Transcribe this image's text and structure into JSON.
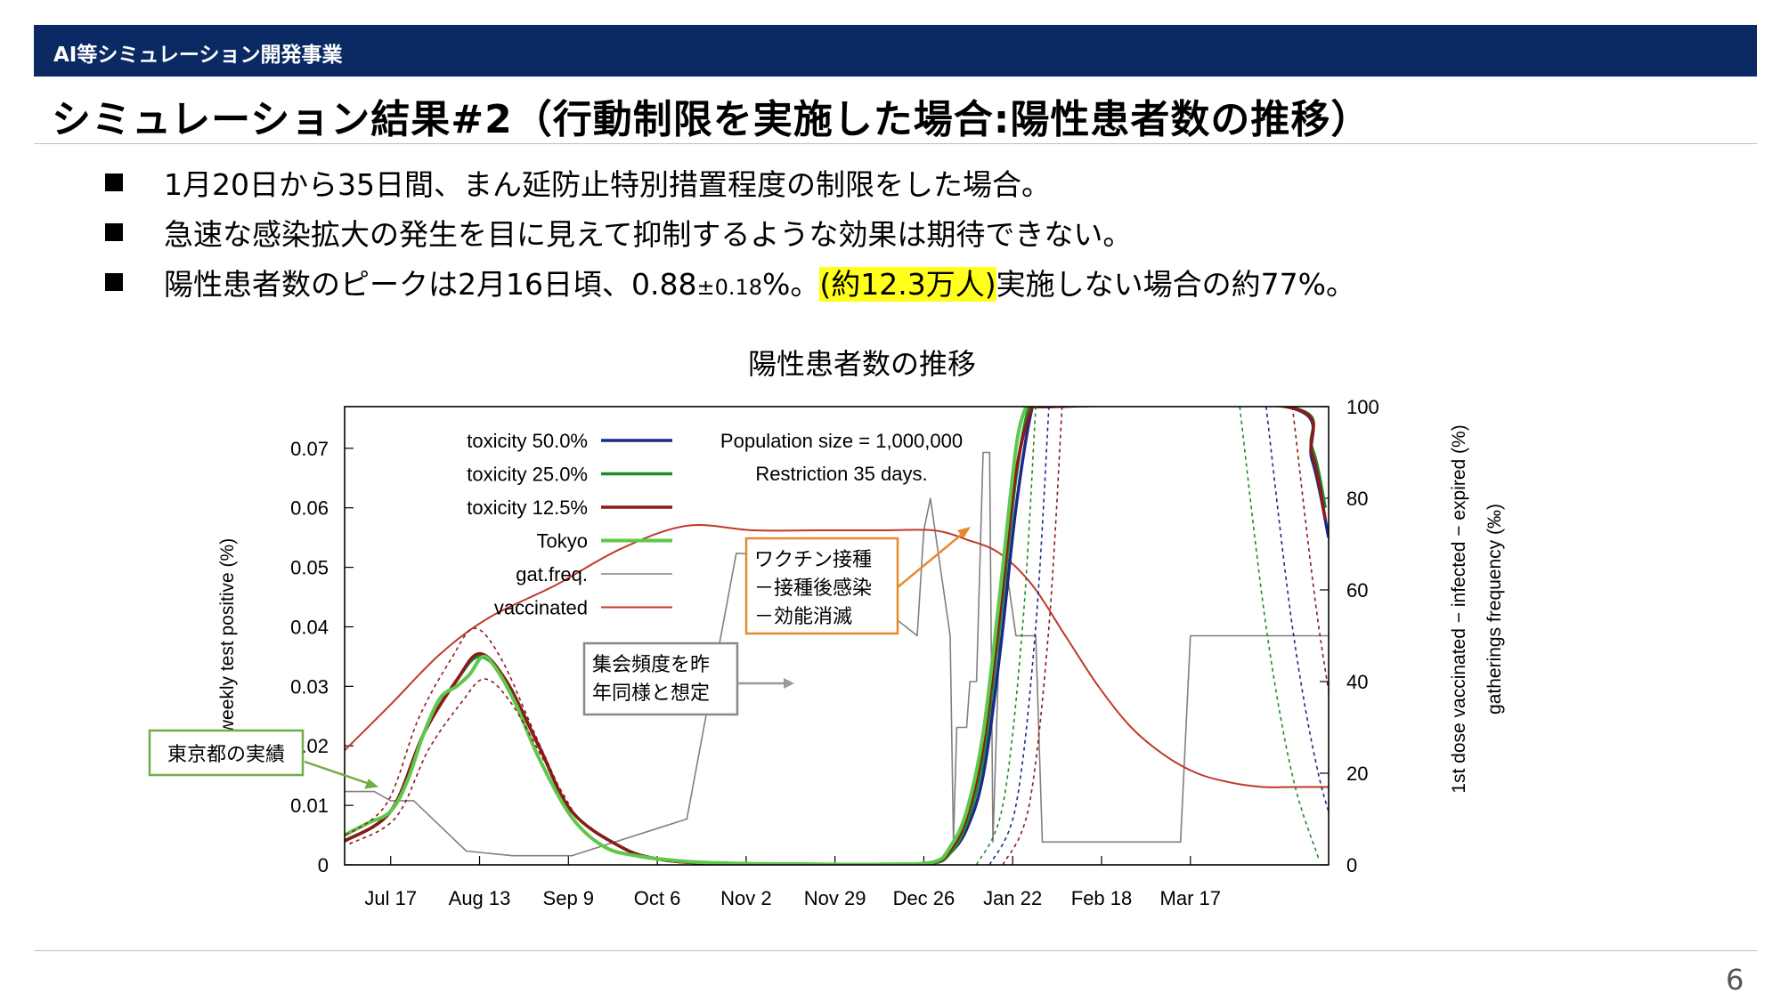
{
  "header": {
    "section": "AI等シミュレーション開発事業",
    "title": "シミュレーション結果#2（行動制限を実施した場合:陽性患者数の推移）"
  },
  "bullets": [
    "1月20日から35日間、まん延防止特別措置程度の制限をした場合。",
    "急速な感染拡大の発生を目に見えて抑制するような効果は期待できない。"
  ],
  "bullet3": {
    "part1": "陽性患者数のピークは2月16日頃、0.88",
    "pm": "±0.18",
    "part2": "%。",
    "highlight": "(約12.3万人)",
    "part3": "実施しない場合の約77%。"
  },
  "page_number": "6",
  "colors": {
    "header_bar": "#0b2a63",
    "tox50": "#1a2a8c",
    "tox25": "#1f8a2a",
    "tox12": "#8b1a1a",
    "tokyo": "#5ec84a",
    "gat": "#808080",
    "vaccinated": "#c0392b",
    "highlight": "#ffff1a",
    "annotation_orange": "#e58a2e",
    "annotation_green": "#70ad47"
  },
  "chart_data": {
    "type": "line",
    "title": "陽性患者数の推移",
    "ylabel": "weekly test positive (%)",
    "y2label": "1st dose vaccinated − infected − expired (%)",
    "y2label2": "gatherings frequency (‰)",
    "ylim": [
      0,
      0.077
    ],
    "y2lim": [
      0,
      100
    ],
    "yticks": [
      "0",
      "0.01",
      "0.02",
      "0.03",
      "0.04",
      "0.05",
      "0.06",
      "0.07"
    ],
    "y2ticks": [
      "0",
      "20",
      "40",
      "60",
      "80",
      "100"
    ],
    "xticks": [
      "Jul 17",
      "Aug 13",
      "Sep 9",
      "Oct 6",
      "Nov 2",
      "Nov 29",
      "Dec 26",
      "Jan 22",
      "Feb 18",
      "Mar 17"
    ],
    "xlim_days": [
      -14,
      285
    ],
    "x_axis_start": "Jul 17",
    "legend_position": "top-left",
    "legend": [
      "toxicity 50.0%",
      "toxicity 25.0%",
      "toxicity 12.5%",
      "Tokyo",
      "gat.freq.",
      "vaccinated"
    ],
    "info_lines": [
      "Population size = 1,000,000",
      "Restriction 35 days."
    ],
    "series": [
      {
        "name": "toxicity 50.0%",
        "axis": "y",
        "x": [
          -14,
          0,
          10,
          20,
          27,
          35,
          45,
          55,
          70,
          81,
          95,
          110,
          130,
          150,
          165,
          170,
          175,
          180,
          185,
          190,
          195,
          198,
          272,
          280,
          285
        ],
        "y": [
          0.004,
          0.009,
          0.022,
          0.031,
          0.035,
          0.031,
          0.02,
          0.009,
          0.003,
          0.001,
          0.0003,
          0.0002,
          0.0001,
          0.0001,
          0.0003,
          0.002,
          0.006,
          0.015,
          0.035,
          0.06,
          0.077,
          0.077,
          0.077,
          0.068,
          0.055
        ]
      },
      {
        "name": "toxicity 25.0%",
        "axis": "y",
        "x": [
          -14,
          0,
          10,
          20,
          27,
          35,
          45,
          55,
          70,
          81,
          95,
          110,
          130,
          150,
          165,
          170,
          175,
          180,
          185,
          190,
          194,
          197,
          272,
          280,
          284
        ],
        "y": [
          0.004,
          0.009,
          0.022,
          0.031,
          0.035,
          0.031,
          0.02,
          0.009,
          0.003,
          0.001,
          0.0003,
          0.0002,
          0.0001,
          0.0001,
          0.0003,
          0.002,
          0.007,
          0.018,
          0.04,
          0.065,
          0.077,
          0.077,
          0.077,
          0.07,
          0.06
        ]
      },
      {
        "name": "toxicity 12.5%",
        "axis": "y",
        "x": [
          -14,
          0,
          10,
          20,
          27,
          35,
          45,
          55,
          70,
          81,
          95,
          110,
          130,
          150,
          165,
          170,
          175,
          180,
          185,
          190,
          195,
          198,
          272,
          280,
          284
        ],
        "y": [
          0.004,
          0.009,
          0.022,
          0.031,
          0.0355,
          0.031,
          0.02,
          0.009,
          0.003,
          0.001,
          0.0003,
          0.0002,
          0.0001,
          0.0001,
          0.0004,
          0.0025,
          0.008,
          0.02,
          0.042,
          0.066,
          0.077,
          0.077,
          0.077,
          0.069,
          0.058
        ]
      },
      {
        "name": "Tokyo",
        "axis": "y",
        "x": [
          -14,
          -7,
          0,
          5,
          10,
          15,
          20,
          24,
          28,
          32,
          38,
          45,
          55,
          65,
          75,
          85,
          95,
          110,
          130,
          150,
          165,
          170,
          175,
          180,
          185,
          190,
          193
        ],
        "y": [
          0.005,
          0.007,
          0.009,
          0.014,
          0.022,
          0.028,
          0.03,
          0.032,
          0.035,
          0.033,
          0.027,
          0.018,
          0.008,
          0.003,
          0.0015,
          0.0008,
          0.0004,
          0.0002,
          0.0001,
          0.0001,
          0.0005,
          0.003,
          0.009,
          0.022,
          0.045,
          0.07,
          0.077
        ]
      },
      {
        "name": "gat.freq.",
        "axis": "y2",
        "x": [
          -14,
          -5,
          0,
          7,
          23,
          37,
          55,
          90,
          105,
          130,
          160,
          162,
          164,
          170,
          171,
          172,
          175,
          176,
          178,
          180,
          182,
          183,
          185,
          187,
          190,
          196,
          198,
          205,
          215,
          240,
          243,
          285
        ],
        "y": [
          16,
          16,
          14,
          14,
          3,
          2,
          2,
          10,
          68,
          67,
          50,
          73,
          80,
          50,
          5,
          30,
          30,
          40,
          40,
          90,
          90,
          5,
          50,
          65,
          50,
          50,
          5,
          5,
          5,
          5,
          50,
          50
        ]
      },
      {
        "name": "vaccinated",
        "axis": "y2",
        "x": [
          -14,
          0,
          15,
          30,
          50,
          70,
          90,
          110,
          130,
          150,
          165,
          175,
          185,
          195,
          205,
          215,
          225,
          235,
          245,
          255,
          265,
          275,
          285
        ],
        "y": [
          25,
          35,
          46,
          54,
          61,
          69,
          74,
          73,
          73,
          73,
          73,
          71,
          68,
          61,
          50,
          39,
          30,
          24,
          20,
          18,
          17,
          17,
          17
        ]
      }
    ],
    "annotations": [
      {
        "text": "東京都の実績"
      },
      {
        "lines": [
          "集会頻度を昨",
          "年同様と想定"
        ]
      },
      {
        "lines": [
          "ワクチン接種",
          "－接種後感染",
          "－効能消滅"
        ]
      }
    ]
  }
}
